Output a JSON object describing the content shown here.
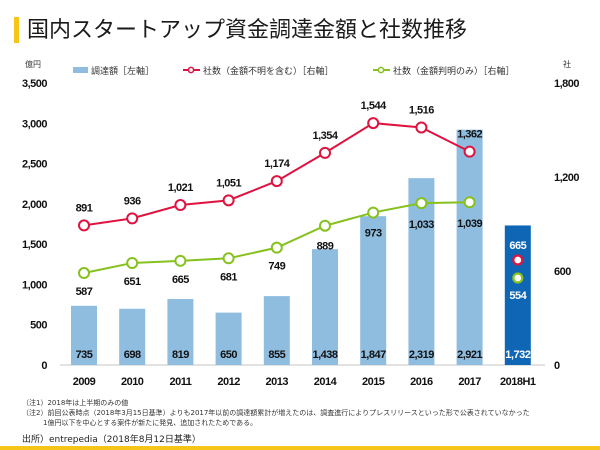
{
  "title": "国内スタートアップ資金調達金額と社数推移",
  "colors": {
    "accent": "#f5c518",
    "bar": "#8fbde0",
    "bar_highlight": "#0f66b5",
    "line_total": "#e0123f",
    "line_known": "#86c11d"
  },
  "chart_data": {
    "type": "bar",
    "title": "国内スタートアップ資金調達金額と社数推移",
    "categories": [
      "2009",
      "2010",
      "2011",
      "2012",
      "2013",
      "2014",
      "2015",
      "2016",
      "2017",
      "2018H1"
    ],
    "y_left": {
      "label": "億円",
      "ylim": [
        0,
        3500
      ],
      "ticks": [
        "0",
        "500",
        "1,000",
        "1,500",
        "2,000",
        "2,500",
        "3,000",
        "3,500"
      ]
    },
    "y_right": {
      "label": "社",
      "ylim": [
        0,
        1800
      ],
      "ticks": [
        "0",
        "600",
        "1,200",
        "1,800"
      ]
    },
    "grid": false,
    "legend_position": "top",
    "series": [
      {
        "name": "調達額［左軸］",
        "type": "bar",
        "axis": "left",
        "values": [
          735,
          698,
          819,
          650,
          855,
          1438,
          1847,
          2319,
          2921,
          1732
        ],
        "labels": [
          "735",
          "698",
          "819",
          "650",
          "855",
          "1,438",
          "1,847",
          "2,319",
          "2,921",
          "1,732"
        ]
      },
      {
        "name": "社数（金額不明を含む）［右軸］",
        "type": "line",
        "axis": "right",
        "values": [
          891,
          936,
          1021,
          1051,
          1174,
          1354,
          1544,
          1516,
          1362,
          665
        ],
        "labels": [
          "891",
          "936",
          "1,021",
          "1,051",
          "1,174",
          "1,354",
          "1,544",
          "1,516",
          "1,362",
          "665"
        ]
      },
      {
        "name": "社数（金額判明のみ）［右軸］",
        "type": "line",
        "axis": "right",
        "values": [
          587,
          651,
          665,
          681,
          749,
          889,
          973,
          1033,
          1039,
          554
        ],
        "labels": [
          "587",
          "651",
          "665",
          "681",
          "749",
          "889",
          "973",
          "1,033",
          "1,039",
          "554"
        ]
      }
    ],
    "annotations": [
      "2018H1 is shown as a separate highlighted bar with unconnected markers"
    ]
  },
  "notes": [
    "（注1）2018年は上半期のみの値",
    "（注2）前回公表時点（2018年3月15日基準）よりも2017年以前の調達額累計が増えたのは、調査進行によりプレスリリースといった形で公表されていなかった",
    "　　　1億円以下を中心とする案件が新たに発見、追加されたためである。"
  ],
  "source": "出所）entrepedia（2018年8月12日基準）"
}
